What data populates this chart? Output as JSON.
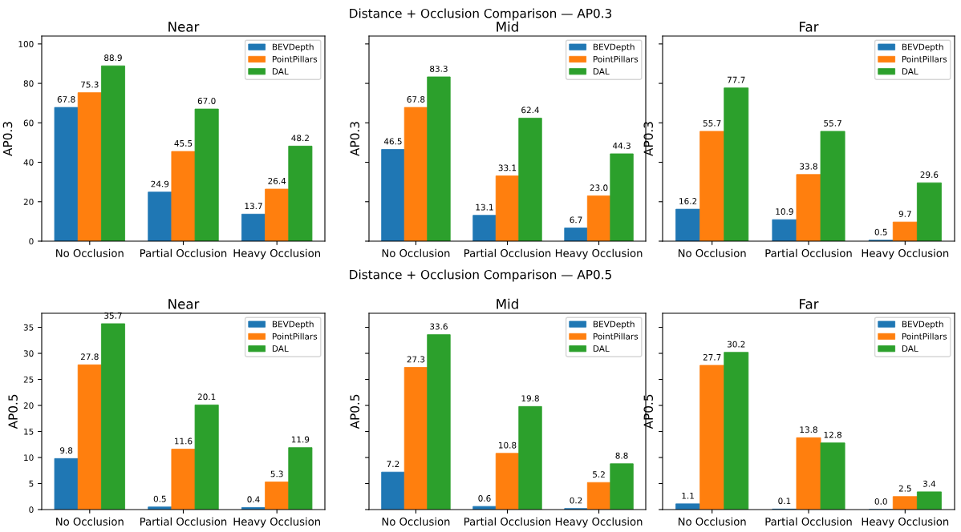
{
  "chart_data": [
    {
      "type": "bar",
      "title": "Near",
      "ylabel": "AP0.3",
      "annotations": [
        "Distance + Occlusion Comparison — AP0.3"
      ],
      "categories": [
        "No Occlusion",
        "Partial Occlusion",
        "Heavy Occlusion"
      ],
      "series": [
        {
          "name": "BEVDepth",
          "color": "#1f77b4",
          "values": [
            67.8,
            24.9,
            13.7
          ]
        },
        {
          "name": "PointPillars",
          "color": "#ff7f0e",
          "values": [
            75.3,
            45.5,
            26.4
          ]
        },
        {
          "name": "DAL",
          "color": "#2ca02c",
          "values": [
            88.9,
            67,
            48.2
          ],
          "value_labels": [
            "88.9",
            "67.0",
            "48.2"
          ]
        }
      ],
      "ylim": [
        0,
        104
      ],
      "yticks": [
        0,
        20,
        40,
        60,
        80,
        100
      ],
      "data_labels": true,
      "legend": "top right"
    },
    {
      "type": "bar",
      "title": "Mid",
      "ylabel": "AP0.3",
      "categories": [
        "No Occlusion",
        "Partial Occlusion",
        "Heavy Occlusion"
      ],
      "series": [
        {
          "name": "BEVDepth",
          "color": "#1f77b4",
          "values": [
            46.5,
            13.1,
            6.7
          ]
        },
        {
          "name": "PointPillars",
          "color": "#ff7f0e",
          "values": [
            67.8,
            33.1,
            23
          ],
          "value_labels": [
            "67.8",
            "33.1",
            "23.0"
          ]
        },
        {
          "name": "DAL",
          "color": "#2ca02c",
          "values": [
            83.3,
            62.4,
            44.3
          ]
        }
      ],
      "ylim": [
        0,
        104
      ],
      "yticks": [
        0,
        20,
        40,
        60,
        80,
        100
      ],
      "tick_labels": "x",
      "data_labels": true,
      "legend": "top right"
    },
    {
      "type": "bar",
      "title": "Far",
      "ylabel": "AP0.3",
      "categories": [
        "No Occlusion",
        "Partial Occlusion",
        "Heavy Occlusion"
      ],
      "series": [
        {
          "name": "BEVDepth",
          "color": "#1f77b4",
          "values": [
            16.2,
            10.9,
            0.5
          ]
        },
        {
          "name": "PointPillars",
          "color": "#ff7f0e",
          "values": [
            55.7,
            33.8,
            9.7
          ]
        },
        {
          "name": "DAL",
          "color": "#2ca02c",
          "values": [
            77.7,
            55.7,
            29.6
          ]
        }
      ],
      "ylim": [
        0,
        104
      ],
      "yticks": [
        0,
        20,
        40,
        60,
        80,
        100
      ],
      "tick_labels": "x",
      "data_labels": true,
      "legend": "top right"
    },
    {
      "type": "bar",
      "title": "Near",
      "ylabel": "AP0.5",
      "annotations": [
        "Distance + Occlusion Comparison — AP0.5"
      ],
      "categories": [
        "No Occlusion",
        "Partial Occlusion",
        "Heavy Occlusion"
      ],
      "series": [
        {
          "name": "BEVDepth",
          "color": "#1f77b4",
          "values": [
            9.8,
            0.5,
            0.4
          ]
        },
        {
          "name": "PointPillars",
          "color": "#ff7f0e",
          "values": [
            27.8,
            11.6,
            5.3
          ]
        },
        {
          "name": "DAL",
          "color": "#2ca02c",
          "values": [
            35.7,
            20.1,
            11.9
          ]
        }
      ],
      "ylim": [
        0,
        37.7
      ],
      "yticks": [
        0,
        5,
        10,
        15,
        20,
        25,
        30,
        35
      ],
      "data_labels": true,
      "legend": "top right"
    },
    {
      "type": "bar",
      "title": "Mid",
      "ylabel": "AP0.5",
      "categories": [
        "No Occlusion",
        "Partial Occlusion",
        "Heavy Occlusion"
      ],
      "series": [
        {
          "name": "BEVDepth",
          "color": "#1f77b4",
          "values": [
            7.2,
            0.6,
            0.2
          ]
        },
        {
          "name": "PointPillars",
          "color": "#ff7f0e",
          "values": [
            27.3,
            10.8,
            5.2
          ]
        },
        {
          "name": "DAL",
          "color": "#2ca02c",
          "values": [
            33.6,
            19.8,
            8.8
          ]
        }
      ],
      "ylim": [
        0,
        37.7
      ],
      "yticks": [
        0,
        5,
        10,
        15,
        20,
        25,
        30,
        35
      ],
      "tick_labels": "x",
      "data_labels": true,
      "legend": "top right"
    },
    {
      "type": "bar",
      "title": "Far",
      "ylabel": "AP0.5",
      "categories": [
        "No Occlusion",
        "Partial Occlusion",
        "Heavy Occlusion"
      ],
      "series": [
        {
          "name": "BEVDepth",
          "color": "#1f77b4",
          "values": [
            1.1,
            0.1,
            0
          ],
          "value_labels": [
            "1.1",
            "0.1",
            "0.0"
          ]
        },
        {
          "name": "PointPillars",
          "color": "#ff7f0e",
          "values": [
            27.7,
            13.8,
            2.5
          ]
        },
        {
          "name": "DAL",
          "color": "#2ca02c",
          "values": [
            30.2,
            12.8,
            3.4
          ]
        }
      ],
      "ylim": [
        0,
        37.7
      ],
      "yticks": [
        0,
        5,
        10,
        15,
        20,
        25,
        30,
        35
      ],
      "tick_labels": "x",
      "data_labels": true,
      "legend": "top right"
    }
  ]
}
